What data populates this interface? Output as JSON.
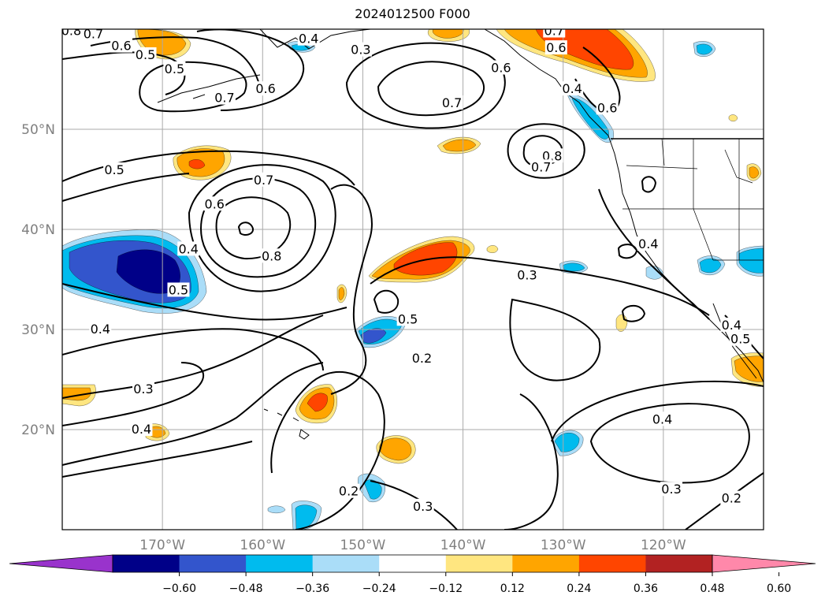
{
  "title": "2024012500 F000",
  "map": {
    "lon_labels": [
      {
        "lon": -170,
        "text": "170°W"
      },
      {
        "lon": -160,
        "text": "160°W"
      },
      {
        "lon": -150,
        "text": "150°W"
      },
      {
        "lon": -140,
        "text": "140°W"
      },
      {
        "lon": -130,
        "text": "130°W"
      },
      {
        "lon": -120,
        "text": "120°W"
      }
    ],
    "lat_labels": [
      {
        "lat": 50,
        "text": "50°N"
      },
      {
        "lat": 40,
        "text": "40°N"
      },
      {
        "lat": 30,
        "text": "30°N"
      },
      {
        "lat": 20,
        "text": "20°N"
      }
    ],
    "contour_labels": [
      {
        "text": "0.8",
        "lon": -179.1,
        "lat": 59.8
      },
      {
        "text": "0.7",
        "lon": -176.9,
        "lat": 59.5
      },
      {
        "text": "0.6",
        "lon": -174.1,
        "lat": 58.3
      },
      {
        "text": "0.5",
        "lon": -171.7,
        "lat": 57.4
      },
      {
        "text": "0.5",
        "lon": -168.8,
        "lat": 56.0
      },
      {
        "text": "0.7",
        "lon": -163.8,
        "lat": 53.1
      },
      {
        "text": "0.6",
        "lon": -159.7,
        "lat": 54.0
      },
      {
        "text": "0.4",
        "lon": -155.4,
        "lat": 59.0
      },
      {
        "text": "0.3",
        "lon": -150.2,
        "lat": 57.9
      },
      {
        "text": "0.6",
        "lon": -136.2,
        "lat": 56.1
      },
      {
        "text": "0.7",
        "lon": -141.1,
        "lat": 52.6
      },
      {
        "text": "0.6",
        "lon": -125.6,
        "lat": 52.1
      },
      {
        "text": "0.7",
        "lon": -130.9,
        "lat": 59.8
      },
      {
        "text": "0.6",
        "lon": -130.7,
        "lat": 58.1
      },
      {
        "text": "0.4",
        "lon": -129.1,
        "lat": 54.0
      },
      {
        "text": "0.8",
        "lon": -131.1,
        "lat": 47.3
      },
      {
        "text": "0.7",
        "lon": -132.2,
        "lat": 46.2
      },
      {
        "text": "0.5",
        "lon": -174.8,
        "lat": 45.9
      },
      {
        "text": "0.7",
        "lon": -159.9,
        "lat": 44.9
      },
      {
        "text": "0.6",
        "lon": -164.8,
        "lat": 42.5
      },
      {
        "text": "0.8",
        "lon": -159.1,
        "lat": 37.3
      },
      {
        "text": "0.4",
        "lon": -167.4,
        "lat": 38.0
      },
      {
        "text": "0.5",
        "lon": -168.4,
        "lat": 33.9
      },
      {
        "text": "0.4",
        "lon": -176.2,
        "lat": 30.0
      },
      {
        "text": "0.4",
        "lon": -121.5,
        "lat": 38.5
      },
      {
        "text": "0.3",
        "lon": -133.6,
        "lat": 35.4
      },
      {
        "text": "0.5",
        "lon": -145.5,
        "lat": 31.0
      },
      {
        "text": "0.4",
        "lon": -113.2,
        "lat": 30.4
      },
      {
        "text": "0.5",
        "lon": -112.3,
        "lat": 29.0
      },
      {
        "text": "0.2",
        "lon": -144.1,
        "lat": 27.1
      },
      {
        "text": "0.3",
        "lon": -171.9,
        "lat": 24.0
      },
      {
        "text": "0.4",
        "lon": -172.1,
        "lat": 20.0
      },
      {
        "text": "0.4",
        "lon": -120.1,
        "lat": 21.0
      },
      {
        "text": "0.3",
        "lon": -119.2,
        "lat": 14.0
      },
      {
        "text": "0.2",
        "lon": -151.4,
        "lat": 13.8
      },
      {
        "text": "0.3",
        "lon": -144.0,
        "lat": 12.3
      },
      {
        "text": "0.2",
        "lon": -113.2,
        "lat": 13.1
      }
    ]
  },
  "colorbar": {
    "ticks": [
      "−0.60",
      "−0.48",
      "−0.36",
      "−0.24",
      "−0.12",
      "0.12",
      "0.24",
      "0.36",
      "0.48",
      "0.60"
    ],
    "colors": [
      "#9933cc",
      "#000088",
      "#3355cc",
      "#00bbee",
      "#aaddf8",
      "#ffffff",
      "#ffe680",
      "#ffa500",
      "#ff4500",
      "#b22222",
      "#ff88aa"
    ]
  },
  "fill_colors": {
    "pos_1": "#ffe680",
    "pos_2": "#ffa500",
    "pos_3": "#ff4500",
    "neg_1": "#aaddf8",
    "neg_2": "#00bbee",
    "neg_3": "#3355cc",
    "neg_4": "#000088"
  },
  "colors": {
    "grid": "#aaaaaa",
    "coast": "#000000",
    "contour": "#000000",
    "label": "#808080"
  }
}
